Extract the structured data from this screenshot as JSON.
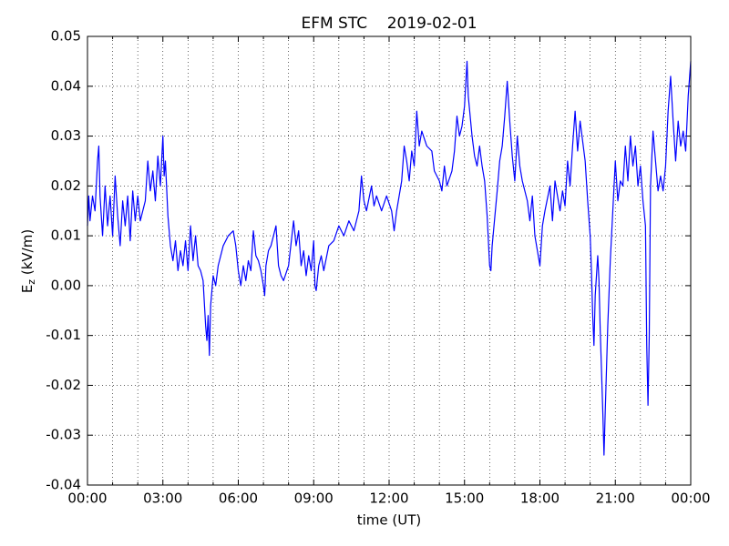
{
  "chart_data": {
    "type": "line",
    "title": "EFM STC    2019-02-01",
    "xlabel": "time (UT)",
    "ylabel": {
      "main": "E",
      "sub": "z",
      "unit": " (kV/m)"
    },
    "color": "#0000ff",
    "grid": true,
    "xlim": [
      0,
      24
    ],
    "xticks": [
      {
        "value": 0,
        "label": "00:00"
      },
      {
        "value": 3,
        "label": "03:00"
      },
      {
        "value": 6,
        "label": "06:00"
      },
      {
        "value": 9,
        "label": "09:00"
      },
      {
        "value": 12,
        "label": "12:00"
      },
      {
        "value": 15,
        "label": "15:00"
      },
      {
        "value": 18,
        "label": "18:00"
      },
      {
        "value": 21,
        "label": "21:00"
      },
      {
        "value": 24,
        "label": "00:00"
      }
    ],
    "x_minor_ticks": [
      1,
      2,
      4,
      5,
      7,
      8,
      10,
      11,
      13,
      14,
      16,
      17,
      19,
      20,
      22,
      23
    ],
    "ylim": [
      -0.04,
      0.05
    ],
    "yticks": [
      -0.04,
      -0.03,
      -0.02,
      -0.01,
      {
        "value": 0,
        "label": "0.00"
      },
      0.01,
      0.02,
      0.03,
      0.04,
      0.05
    ],
    "x": [
      0.0,
      0.05,
      0.1,
      0.2,
      0.3,
      0.4,
      0.45,
      0.5,
      0.6,
      0.7,
      0.8,
      0.9,
      1.0,
      1.1,
      1.2,
      1.3,
      1.4,
      1.5,
      1.6,
      1.7,
      1.8,
      1.9,
      2.0,
      2.1,
      2.3,
      2.4,
      2.5,
      2.6,
      2.7,
      2.8,
      2.9,
      3.0,
      3.05,
      3.1,
      3.2,
      3.3,
      3.4,
      3.5,
      3.6,
      3.7,
      3.8,
      3.9,
      4.0,
      4.1,
      4.2,
      4.3,
      4.4,
      4.5,
      4.6,
      4.7,
      4.75,
      4.8,
      4.85,
      4.9,
      5.0,
      5.1,
      5.2,
      5.4,
      5.6,
      5.8,
      5.9,
      6.0,
      6.1,
      6.2,
      6.3,
      6.4,
      6.5,
      6.6,
      6.7,
      6.8,
      6.9,
      7.0,
      7.05,
      7.1,
      7.2,
      7.3,
      7.5,
      7.6,
      7.7,
      7.8,
      8.0,
      8.2,
      8.3,
      8.4,
      8.5,
      8.6,
      8.7,
      8.8,
      8.9,
      9.0,
      9.05,
      9.1,
      9.2,
      9.3,
      9.4,
      9.6,
      9.8,
      10.0,
      10.2,
      10.4,
      10.6,
      10.8,
      10.9,
      11.0,
      11.1,
      11.3,
      11.4,
      11.5,
      11.7,
      11.9,
      12.1,
      12.2,
      12.3,
      12.5,
      12.6,
      12.7,
      12.8,
      12.9,
      13.0,
      13.1,
      13.2,
      13.3,
      13.5,
      13.7,
      13.8,
      14.0,
      14.1,
      14.2,
      14.3,
      14.5,
      14.6,
      14.7,
      14.8,
      14.9,
      15.0,
      15.1,
      15.15,
      15.3,
      15.4,
      15.5,
      15.6,
      15.7,
      15.8,
      15.9,
      16.0,
      16.05,
      16.1,
      16.3,
      16.4,
      16.5,
      16.6,
      16.7,
      16.8,
      16.9,
      17.0,
      17.1,
      17.2,
      17.3,
      17.5,
      17.6,
      17.7,
      17.8,
      17.9,
      18.0,
      18.1,
      18.2,
      18.4,
      18.5,
      18.6,
      18.8,
      18.9,
      19.0,
      19.1,
      19.2,
      19.3,
      19.4,
      19.5,
      19.6,
      19.7,
      19.8,
      19.9,
      20.0,
      20.05,
      20.1,
      20.15,
      20.2,
      20.3,
      20.35,
      20.4,
      20.5,
      20.55,
      20.6,
      20.7,
      20.8,
      20.9,
      21.0,
      21.1,
      21.2,
      21.3,
      21.4,
      21.5,
      21.6,
      21.7,
      21.8,
      21.9,
      22.0,
      22.1,
      22.2,
      22.25,
      22.3,
      22.35,
      22.4,
      22.5,
      22.6,
      22.7,
      22.8,
      22.9,
      23.0,
      23.1,
      23.2,
      23.3,
      23.4,
      23.5,
      23.6,
      23.7,
      23.8,
      23.9,
      24.0
    ],
    "values": [
      0.012,
      0.018,
      0.013,
      0.018,
      0.015,
      0.025,
      0.028,
      0.018,
      0.01,
      0.02,
      0.012,
      0.018,
      0.01,
      0.022,
      0.014,
      0.008,
      0.017,
      0.012,
      0.018,
      0.009,
      0.019,
      0.013,
      0.018,
      0.013,
      0.017,
      0.025,
      0.019,
      0.023,
      0.017,
      0.026,
      0.02,
      0.03,
      0.022,
      0.025,
      0.014,
      0.008,
      0.005,
      0.009,
      0.003,
      0.007,
      0.004,
      0.009,
      0.003,
      0.012,
      0.005,
      0.01,
      0.004,
      0.003,
      0.001,
      -0.008,
      -0.011,
      -0.006,
      -0.014,
      -0.004,
      0.002,
      0.0,
      0.004,
      0.008,
      0.01,
      0.011,
      0.008,
      0.003,
      0.0,
      0.004,
      0.001,
      0.005,
      0.003,
      0.011,
      0.006,
      0.005,
      0.003,
      0.0,
      -0.002,
      0.004,
      0.007,
      0.008,
      0.012,
      0.004,
      0.002,
      0.001,
      0.004,
      0.013,
      0.008,
      0.011,
      0.004,
      0.007,
      0.002,
      0.006,
      0.003,
      0.009,
      0.0,
      -0.001,
      0.004,
      0.006,
      0.003,
      0.008,
      0.009,
      0.012,
      0.01,
      0.013,
      0.011,
      0.015,
      0.022,
      0.017,
      0.015,
      0.02,
      0.016,
      0.018,
      0.015,
      0.018,
      0.015,
      0.011,
      0.015,
      0.021,
      0.028,
      0.025,
      0.021,
      0.027,
      0.024,
      0.035,
      0.028,
      0.031,
      0.028,
      0.027,
      0.023,
      0.021,
      0.019,
      0.024,
      0.02,
      0.023,
      0.027,
      0.034,
      0.03,
      0.032,
      0.036,
      0.045,
      0.038,
      0.03,
      0.026,
      0.024,
      0.028,
      0.024,
      0.021,
      0.014,
      0.004,
      0.003,
      0.008,
      0.019,
      0.025,
      0.028,
      0.034,
      0.041,
      0.033,
      0.026,
      0.021,
      0.03,
      0.024,
      0.021,
      0.017,
      0.013,
      0.018,
      0.01,
      0.007,
      0.004,
      0.012,
      0.015,
      0.02,
      0.013,
      0.021,
      0.015,
      0.019,
      0.016,
      0.025,
      0.02,
      0.028,
      0.035,
      0.027,
      0.033,
      0.029,
      0.025,
      0.017,
      0.01,
      0.003,
      -0.006,
      -0.012,
      -0.002,
      0.006,
      0.001,
      -0.009,
      -0.025,
      -0.034,
      -0.025,
      -0.008,
      0.005,
      0.015,
      0.025,
      0.017,
      0.021,
      0.02,
      0.028,
      0.021,
      0.03,
      0.024,
      0.028,
      0.02,
      0.024,
      0.017,
      0.012,
      -0.012,
      -0.024,
      -0.01,
      0.02,
      0.031,
      0.025,
      0.019,
      0.022,
      0.019,
      0.024,
      0.035,
      0.042,
      0.033,
      0.025,
      0.033,
      0.028,
      0.031,
      0.027,
      0.038,
      0.045
    ]
  }
}
